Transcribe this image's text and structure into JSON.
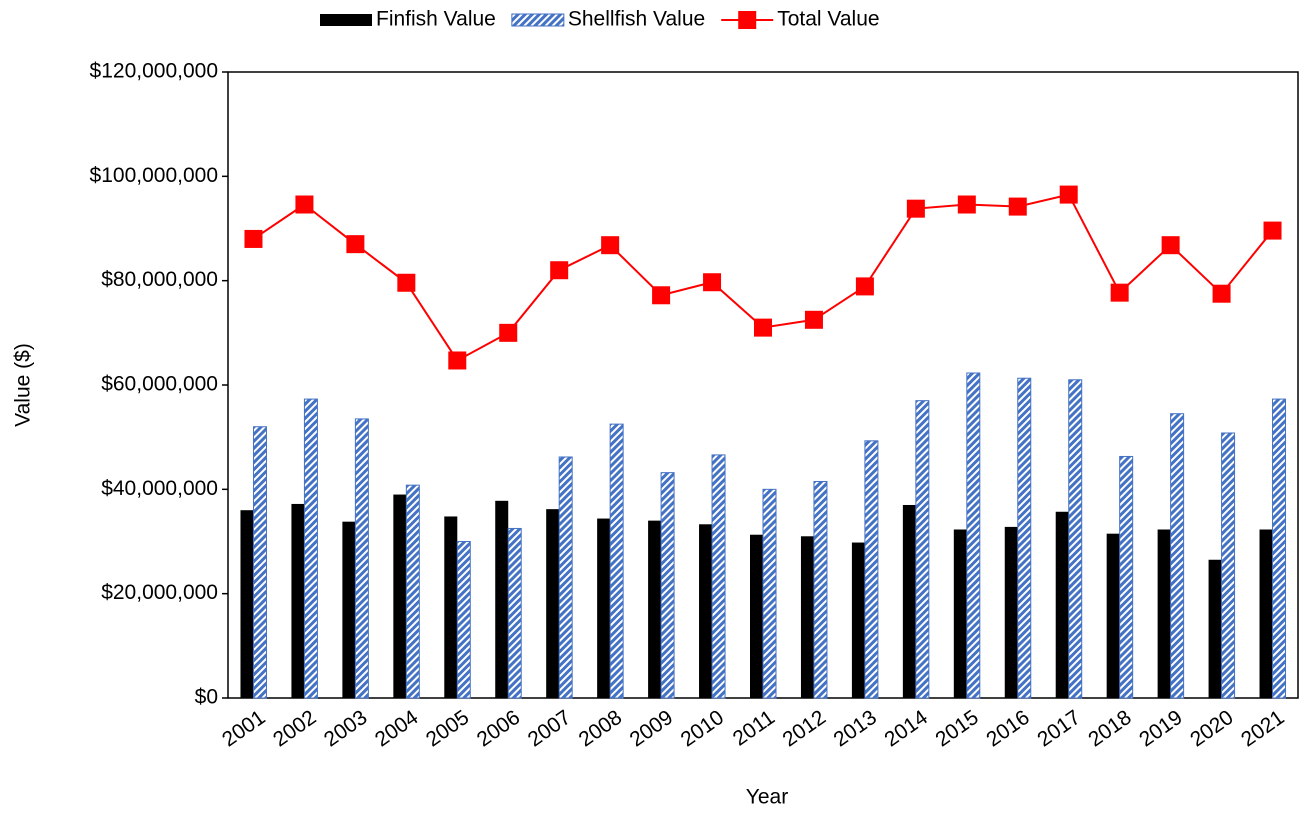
{
  "chart_data": {
    "type": "bar_line",
    "x_label": "Year",
    "y_label": "Value ($)",
    "categories": [
      "2001",
      "2002",
      "2003",
      "2004",
      "2005",
      "2006",
      "2007",
      "2008",
      "2009",
      "2010",
      "2011",
      "2012",
      "2013",
      "2014",
      "2015",
      "2016",
      "2017",
      "2018",
      "2019",
      "2020",
      "2021"
    ],
    "series": [
      {
        "name": "Finfish Value",
        "type": "bar",
        "color": "#000000",
        "values": [
          36000000,
          37200000,
          33800000,
          39000000,
          34800000,
          37800000,
          36200000,
          34400000,
          34000000,
          33300000,
          31300000,
          31000000,
          29800000,
          37000000,
          32300000,
          32800000,
          35700000,
          31500000,
          32300000,
          26500000,
          32300000
        ]
      },
      {
        "name": "Shellfish Value",
        "type": "bar",
        "color": "#4472c4",
        "pattern": "hatch",
        "values": [
          52000000,
          57300000,
          53500000,
          40800000,
          30000000,
          32500000,
          46200000,
          52500000,
          43200000,
          46600000,
          40000000,
          41500000,
          49300000,
          57000000,
          62300000,
          61300000,
          61000000,
          46300000,
          54500000,
          50800000,
          57300000
        ]
      },
      {
        "name": "Total Value",
        "type": "line",
        "color": "#ff0000",
        "marker": "square",
        "values": [
          88000000,
          94600000,
          87000000,
          79600000,
          64700000,
          70000000,
          82000000,
          86800000,
          77200000,
          79700000,
          71000000,
          72500000,
          78900000,
          93800000,
          94600000,
          94200000,
          96500000,
          77700000,
          86800000,
          77500000,
          89600000
        ]
      }
    ],
    "ylim": [
      0,
      120000000
    ],
    "yticks": [
      {
        "value": 0,
        "label": "$0"
      },
      {
        "value": 20000000,
        "label": "$20,000,000"
      },
      {
        "value": 40000000,
        "label": "$40,000,000"
      },
      {
        "value": 60000000,
        "label": "$60,000,000"
      },
      {
        "value": 80000000,
        "label": "$80,000,000"
      },
      {
        "value": 100000000,
        "label": "$100,000,000"
      },
      {
        "value": 120000000,
        "label": "$120,000,000"
      }
    ],
    "legend": "top"
  }
}
